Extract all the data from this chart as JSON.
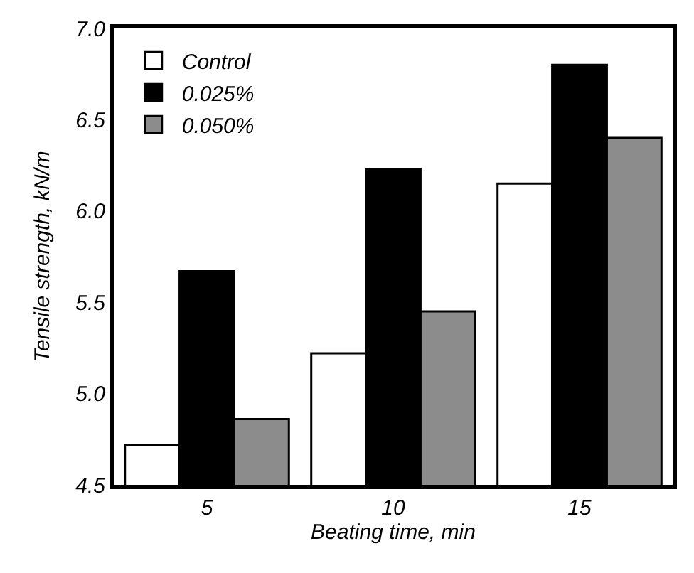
{
  "chart_data": {
    "type": "bar",
    "xlabel": "Beating time, min",
    "ylabel": "Tensile strength, kN/m",
    "categories": [
      "5",
      "10",
      "15"
    ],
    "series": [
      {
        "name": "Control",
        "color": "#ffffff",
        "values": [
          4.72,
          5.22,
          6.15
        ]
      },
      {
        "name": "0.025%",
        "color": "#000000",
        "values": [
          5.67,
          6.23,
          6.8
        ]
      },
      {
        "name": "0.050%",
        "color": "#8c8c8c",
        "values": [
          4.86,
          5.45,
          6.4
        ]
      }
    ],
    "ylim": [
      4.5,
      7.0
    ],
    "yticks": [
      {
        "value": 4.5,
        "label": "4.5"
      },
      {
        "value": 5.0,
        "label": "5.0"
      },
      {
        "value": 5.5,
        "label": "5.5"
      },
      {
        "value": 6.0,
        "label": "6.0"
      },
      {
        "value": 6.5,
        "label": "6.5"
      },
      {
        "value": 7.0,
        "label": "7.0"
      }
    ],
    "legend": "top left"
  }
}
